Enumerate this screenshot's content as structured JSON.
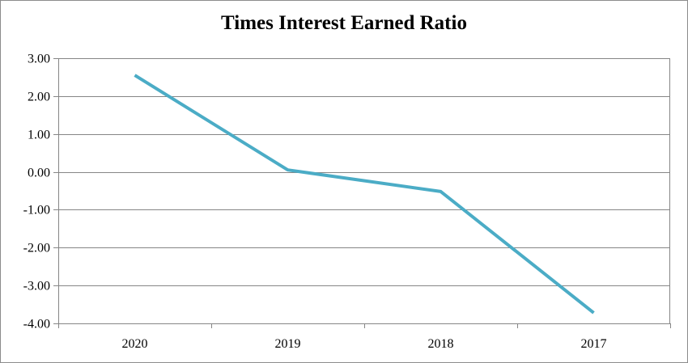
{
  "chart_data": {
    "type": "line",
    "title": "Times Interest Earned Ratio",
    "categories": [
      "2020",
      "2019",
      "2018",
      "2017"
    ],
    "series": [
      {
        "values": [
          2.55,
          0.05,
          -0.52,
          -3.72
        ],
        "color": "#4bacc6"
      }
    ],
    "ylim": [
      -4,
      3
    ],
    "yticks": [
      3,
      2,
      1,
      0,
      -1,
      -2,
      -3,
      -4
    ],
    "ytick_labels": [
      "3.00",
      "2.00",
      "1.00",
      "0.00",
      "-1.00",
      "-2.00",
      "-3.00",
      "-4.00"
    ],
    "grid": true,
    "legend": "none",
    "gridline_color": "#868686"
  }
}
